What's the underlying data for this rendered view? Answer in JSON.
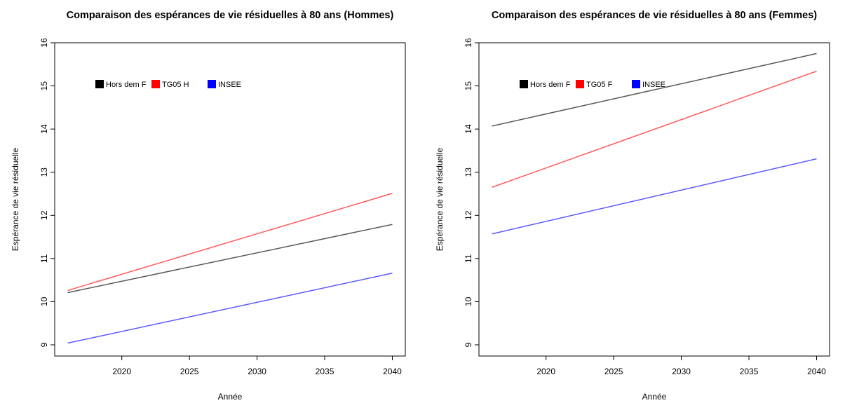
{
  "chart_data": [
    {
      "type": "line",
      "title": "Comparaison des espérances de vie résiduelles à 80 ans (Hommes)",
      "xlabel": "Année",
      "ylabel": "Espérance de vie résiduelle",
      "x": [
        2016,
        2040
      ],
      "series": [
        {
          "name": "Hors dem F",
          "color": "#000000",
          "values": [
            10.21,
            11.79
          ]
        },
        {
          "name": "TG05 H",
          "color": "#ff0000",
          "values": [
            10.26,
            12.51
          ]
        },
        {
          "name": "INSEE",
          "color": "#0000ff",
          "values": [
            9.04,
            10.66
          ]
        }
      ],
      "xlim": [
        2015.04,
        2040.96
      ],
      "xticks": [
        2020,
        2025,
        2030,
        2035,
        2040
      ],
      "ylim": [
        8.74,
        16
      ],
      "yticks": [
        9,
        10,
        11,
        12,
        13,
        14,
        15,
        16
      ],
      "legend": "top-left"
    },
    {
      "type": "line",
      "title": "Comparaison des espérances de vie résiduelles à 80 ans (Femmes)",
      "xlabel": "Année",
      "ylabel": "Espérance de vie résiduelle",
      "x": [
        2016,
        2040
      ],
      "series": [
        {
          "name": "Hors dem F",
          "color": "#000000",
          "values": [
            14.07,
            15.75
          ]
        },
        {
          "name": "TG05 F",
          "color": "#ff0000",
          "values": [
            12.65,
            15.34
          ]
        },
        {
          "name": "INSEE",
          "color": "#0000ff",
          "values": [
            11.57,
            13.31
          ]
        }
      ],
      "xlim": [
        2015.04,
        2040.96
      ],
      "xticks": [
        2020,
        2025,
        2030,
        2035,
        2040
      ],
      "ylim": [
        8.74,
        16
      ],
      "yticks": [
        9,
        10,
        11,
        12,
        13,
        14,
        15,
        16
      ],
      "legend": "top-left"
    }
  ]
}
